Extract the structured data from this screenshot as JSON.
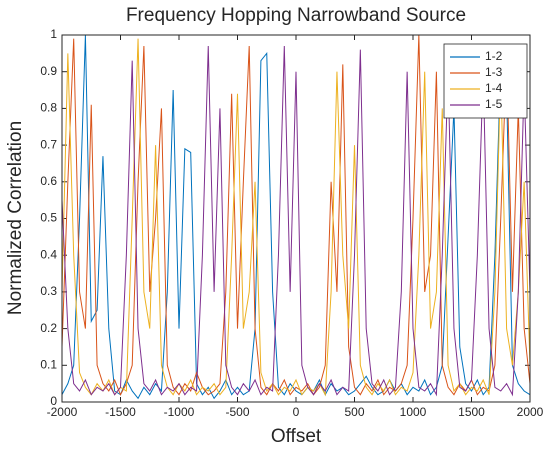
{
  "chart_data": {
    "type": "line",
    "title": "Frequency Hopping Narrowband Source",
    "xlabel": "Offset",
    "ylabel": "Normalized Correlation",
    "x": [
      -2000,
      -1950,
      -1900,
      -1850,
      -1800,
      -1750,
      -1700,
      -1650,
      -1600,
      -1550,
      -1500,
      -1450,
      -1400,
      -1350,
      -1300,
      -1250,
      -1200,
      -1150,
      -1100,
      -1050,
      -1000,
      -950,
      -900,
      -850,
      -800,
      -750,
      -700,
      -650,
      -600,
      -550,
      -500,
      -450,
      -400,
      -350,
      -300,
      -250,
      -200,
      -150,
      -100,
      -50,
      0,
      50,
      100,
      150,
      200,
      250,
      300,
      350,
      400,
      450,
      500,
      550,
      600,
      650,
      700,
      750,
      800,
      850,
      900,
      950,
      1000,
      1050,
      1100,
      1150,
      1200,
      1250,
      1300,
      1350,
      1400,
      1450,
      1500,
      1550,
      1600,
      1650,
      1700,
      1750,
      1800,
      1850,
      1900,
      1950,
      2000
    ],
    "series": [
      {
        "name": "1-2",
        "color": "#0072BD",
        "values": [
          0.02,
          0.05,
          0.1,
          0.5,
          1.0,
          0.22,
          0.25,
          0.67,
          0.2,
          0.03,
          0.02,
          0.06,
          0.03,
          0.01,
          0.04,
          0.02,
          0.05,
          0.03,
          0.3,
          0.85,
          0.2,
          0.69,
          0.68,
          0.05,
          0.02,
          0.04,
          0.01,
          0.03,
          0.06,
          0.02,
          0.04,
          0.02,
          0.03,
          0.2,
          0.93,
          0.95,
          0.3,
          0.04,
          0.02,
          0.05,
          0.03,
          0.02,
          0.04,
          0.03,
          0.06,
          0.02,
          0.05,
          0.03,
          0.04,
          0.02,
          0.03,
          0.05,
          0.07,
          0.04,
          0.02,
          0.03,
          0.06,
          0.03,
          0.05,
          0.02,
          0.04,
          0.03,
          0.06,
          0.02,
          0.04,
          0.1,
          0.45,
          0.8,
          0.15,
          0.05,
          0.03,
          0.06,
          0.02,
          0.04,
          0.4,
          0.93,
          0.85,
          0.1,
          0.05,
          0.03,
          0.02
        ]
      },
      {
        "name": "1-3",
        "color": "#D95319",
        "values": [
          0.15,
          0.6,
          0.99,
          0.3,
          0.2,
          0.81,
          0.1,
          0.05,
          0.03,
          0.06,
          0.02,
          0.05,
          0.1,
          0.6,
          0.97,
          0.3,
          0.5,
          0.8,
          0.1,
          0.04,
          0.02,
          0.05,
          0.03,
          0.08,
          0.04,
          0.02,
          0.03,
          0.05,
          0.3,
          0.84,
          0.2,
          0.6,
          0.97,
          0.2,
          0.04,
          0.02,
          0.05,
          0.03,
          0.06,
          0.02,
          0.04,
          0.03,
          0.05,
          0.02,
          0.04,
          0.1,
          0.6,
          0.3,
          0.92,
          0.15,
          0.04,
          0.02,
          0.05,
          0.03,
          0.06,
          0.02,
          0.04,
          0.03,
          0.05,
          0.1,
          0.5,
          1.0,
          0.3,
          0.4,
          0.9,
          0.1,
          0.04,
          0.02,
          0.05,
          0.03,
          0.06,
          0.02,
          0.04,
          0.03,
          0.1,
          0.5,
          0.95,
          0.3,
          0.8,
          0.2,
          0.05
        ]
      },
      {
        "name": "1-4",
        "color": "#EDB120",
        "values": [
          0.3,
          0.95,
          0.4,
          0.08,
          0.04,
          0.02,
          0.05,
          0.03,
          0.06,
          0.02,
          0.04,
          0.03,
          0.5,
          0.99,
          0.3,
          0.2,
          0.7,
          0.1,
          0.04,
          0.02,
          0.05,
          0.03,
          0.06,
          0.02,
          0.04,
          0.03,
          0.05,
          0.02,
          0.04,
          0.4,
          0.84,
          0.2,
          0.3,
          0.6,
          0.08,
          0.03,
          0.05,
          0.02,
          0.04,
          0.03,
          0.06,
          0.02,
          0.04,
          0.03,
          0.05,
          0.02,
          0.3,
          0.9,
          0.4,
          0.2,
          0.7,
          0.1,
          0.04,
          0.02,
          0.05,
          0.03,
          0.06,
          0.02,
          0.04,
          0.03,
          0.08,
          0.4,
          0.9,
          0.2,
          0.3,
          0.8,
          0.1,
          0.03,
          0.05,
          0.02,
          0.04,
          0.03,
          0.06,
          0.02,
          0.3,
          0.9,
          0.2,
          0.1,
          0.3,
          0.6,
          0.1
        ]
      },
      {
        "name": "1-5",
        "color": "#7E2F8E",
        "values": [
          0.55,
          0.2,
          0.05,
          0.03,
          0.06,
          0.02,
          0.04,
          0.03,
          0.05,
          0.02,
          0.04,
          0.4,
          0.93,
          0.2,
          0.05,
          0.03,
          0.06,
          0.02,
          0.04,
          0.03,
          0.05,
          0.02,
          0.04,
          0.03,
          0.4,
          0.97,
          0.3,
          0.8,
          0.1,
          0.04,
          0.02,
          0.05,
          0.03,
          0.06,
          0.02,
          0.04,
          0.03,
          0.4,
          0.97,
          0.3,
          0.9,
          0.1,
          0.04,
          0.02,
          0.05,
          0.03,
          0.06,
          0.02,
          0.04,
          0.03,
          0.4,
          0.96,
          0.2,
          0.05,
          0.03,
          0.06,
          0.02,
          0.04,
          0.3,
          0.9,
          0.2,
          0.04,
          0.03,
          0.05,
          0.02,
          0.4,
          0.9,
          0.2,
          0.04,
          0.03,
          0.06,
          0.4,
          0.9,
          0.2,
          0.04,
          0.03,
          0.05,
          0.02,
          0.3,
          0.87,
          0.3
        ]
      }
    ],
    "xlim": [
      -2000,
      2000
    ],
    "xticks": [
      -2000,
      -1500,
      -1000,
      -500,
      0,
      500,
      1000,
      1500,
      2000
    ],
    "ylim": [
      0,
      1
    ],
    "yticks": [
      0,
      0.1,
      0.2,
      0.3,
      0.4,
      0.5,
      0.6,
      0.7,
      0.8,
      0.9,
      1
    ],
    "legend": "top-right"
  }
}
